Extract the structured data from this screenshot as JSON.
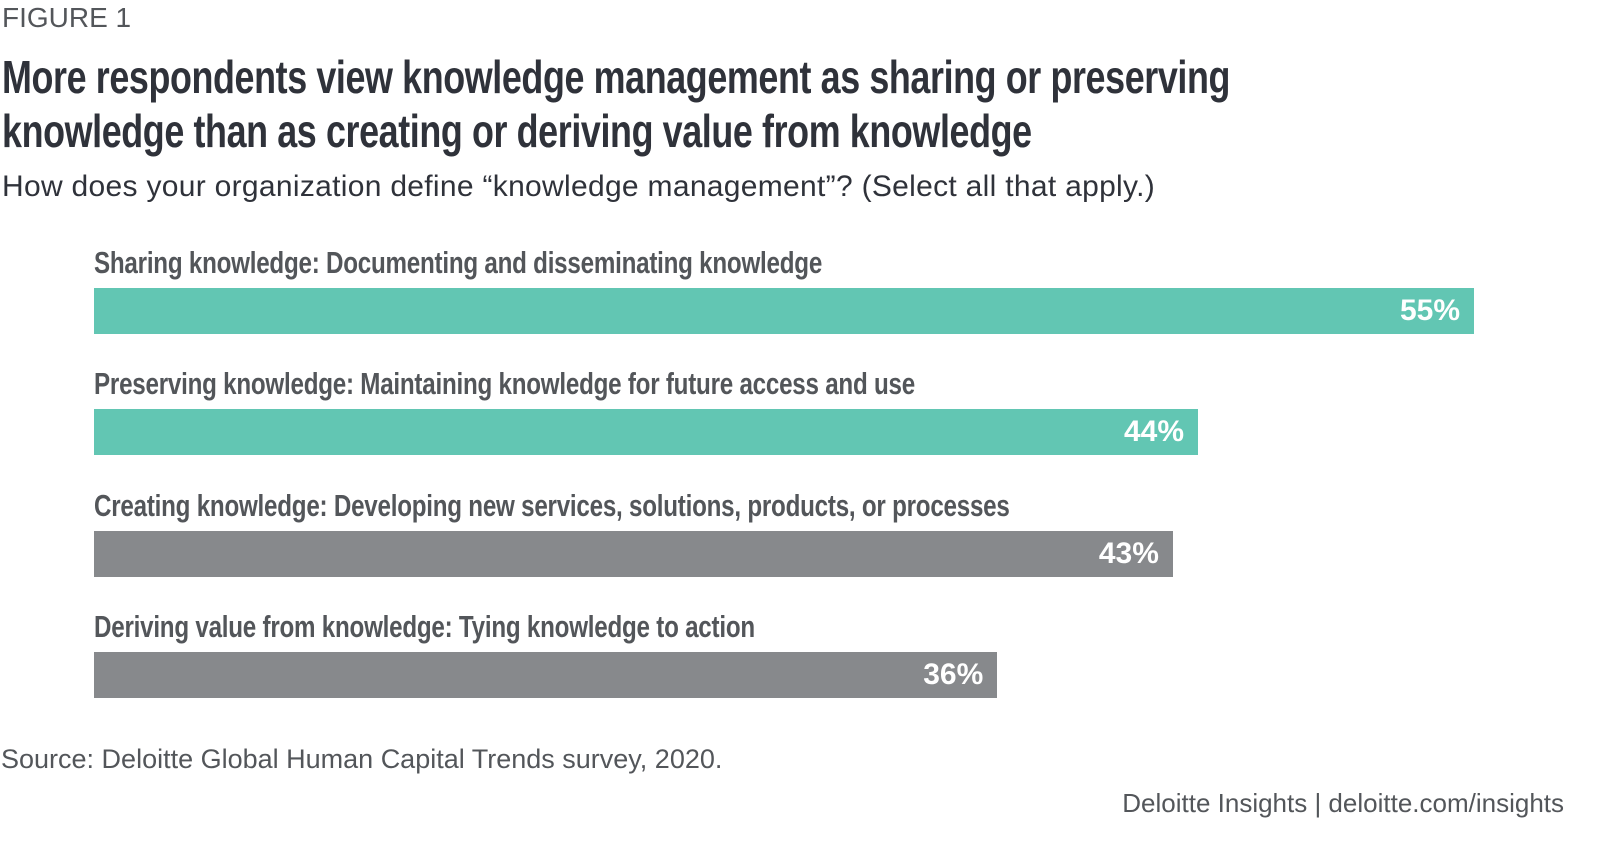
{
  "figure_label": "FIGURE 1",
  "chart_data": {
    "type": "bar",
    "orientation": "horizontal",
    "title": "More respondents view knowledge management as sharing or preserving knowledge than as creating or deriving value from knowledge",
    "title_lines": [
      "More respondents view knowledge management as sharing or preserving",
      "knowledge than as creating or deriving value from knowledge"
    ],
    "subtitle": "How does your organization define “knowledge management”? (Select all that apply.)",
    "categories": [
      "Sharing knowledge: Documenting and disseminating knowledge",
      "Preserving knowledge: Maintaining knowledge for future access and use",
      "Creating knowledge: Developing new services, solutions, products, or processes",
      "Deriving value from knowledge: Tying knowledge to action"
    ],
    "values": [
      55,
      44,
      43,
      36
    ],
    "value_labels": [
      "55%",
      "44%",
      "43%",
      "36%"
    ],
    "bar_colors": [
      "#62c6b3",
      "#62c6b3",
      "#87898c",
      "#87898c"
    ],
    "xlim": [
      0,
      55
    ],
    "grid": false,
    "source": "Source: Deloitte Global Human Capital Trends survey, 2020.",
    "credit": "Deloitte Insights | deloitte.com/insights"
  }
}
